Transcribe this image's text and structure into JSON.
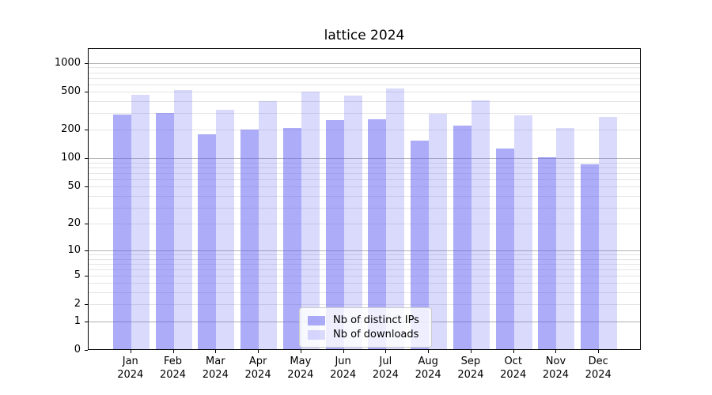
{
  "chart_data": {
    "type": "bar",
    "title": "lattice 2024",
    "categories": [
      "Jan 2024",
      "Feb 2024",
      "Mar 2024",
      "Apr 2024",
      "May 2024",
      "Jun 2024",
      "Jul 2024",
      "Aug 2024",
      "Sep 2024",
      "Oct 2024",
      "Nov 2024",
      "Dec 2024"
    ],
    "series": [
      {
        "name": "Nb of distinct IPs",
        "color": "rgba(95,95,242,0.52)",
        "values": [
          285,
          295,
          175,
          198,
          206,
          250,
          255,
          151,
          218,
          125,
          100,
          85
        ]
      },
      {
        "name": "Nb of downloads",
        "color": "rgba(95,95,242,0.23)",
        "values": [
          457,
          512,
          318,
          390,
          495,
          451,
          530,
          289,
          400,
          277,
          207,
          266
        ]
      }
    ],
    "xlabel": "",
    "ylabel": "",
    "y_scale": "log1p",
    "yticks": [
      0,
      1,
      2,
      5,
      10,
      20,
      50,
      100,
      200,
      500,
      1000
    ],
    "ylim": [
      0,
      1430
    ],
    "grid": "both",
    "legend_position": "lower center"
  },
  "colors": {
    "background": "#ffffff",
    "grid_major": "#b0b0b0",
    "grid_minor": "#e4e4e4",
    "spine": "#000000",
    "text": "#000000"
  }
}
